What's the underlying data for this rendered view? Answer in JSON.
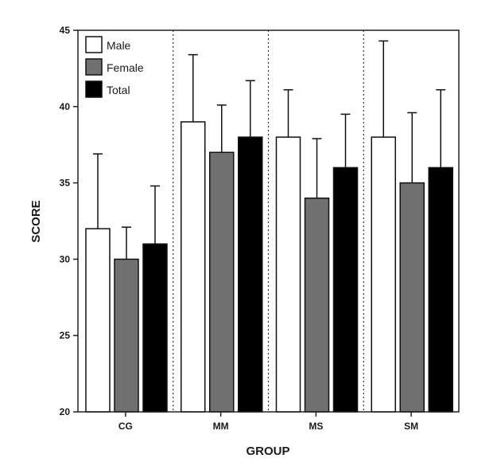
{
  "chart_data": {
    "type": "bar",
    "categories": [
      "CG",
      "MM",
      "MS",
      "SM"
    ],
    "xlabel": "GROUP",
    "ylabel": "SCORE",
    "ylim": [
      20,
      45
    ],
    "yticks": [
      20,
      25,
      30,
      35,
      40,
      45
    ],
    "legend_position": "top-left",
    "grid": false,
    "group_separators": "dotted vertical lines",
    "series": [
      {
        "name": "Male",
        "color": "#ffffff",
        "values": [
          32,
          39,
          38,
          38
        ],
        "error_upper": [
          36.9,
          43.4,
          41.1,
          44.3
        ]
      },
      {
        "name": "Female",
        "color": "#707070",
        "values": [
          30,
          37,
          34,
          35
        ],
        "error_upper": [
          32.1,
          40.1,
          37.9,
          39.6
        ]
      },
      {
        "name": "Total",
        "color": "#000000",
        "values": [
          31,
          38,
          36,
          36
        ],
        "error_upper": [
          34.8,
          41.7,
          39.5,
          41.1
        ]
      }
    ]
  }
}
